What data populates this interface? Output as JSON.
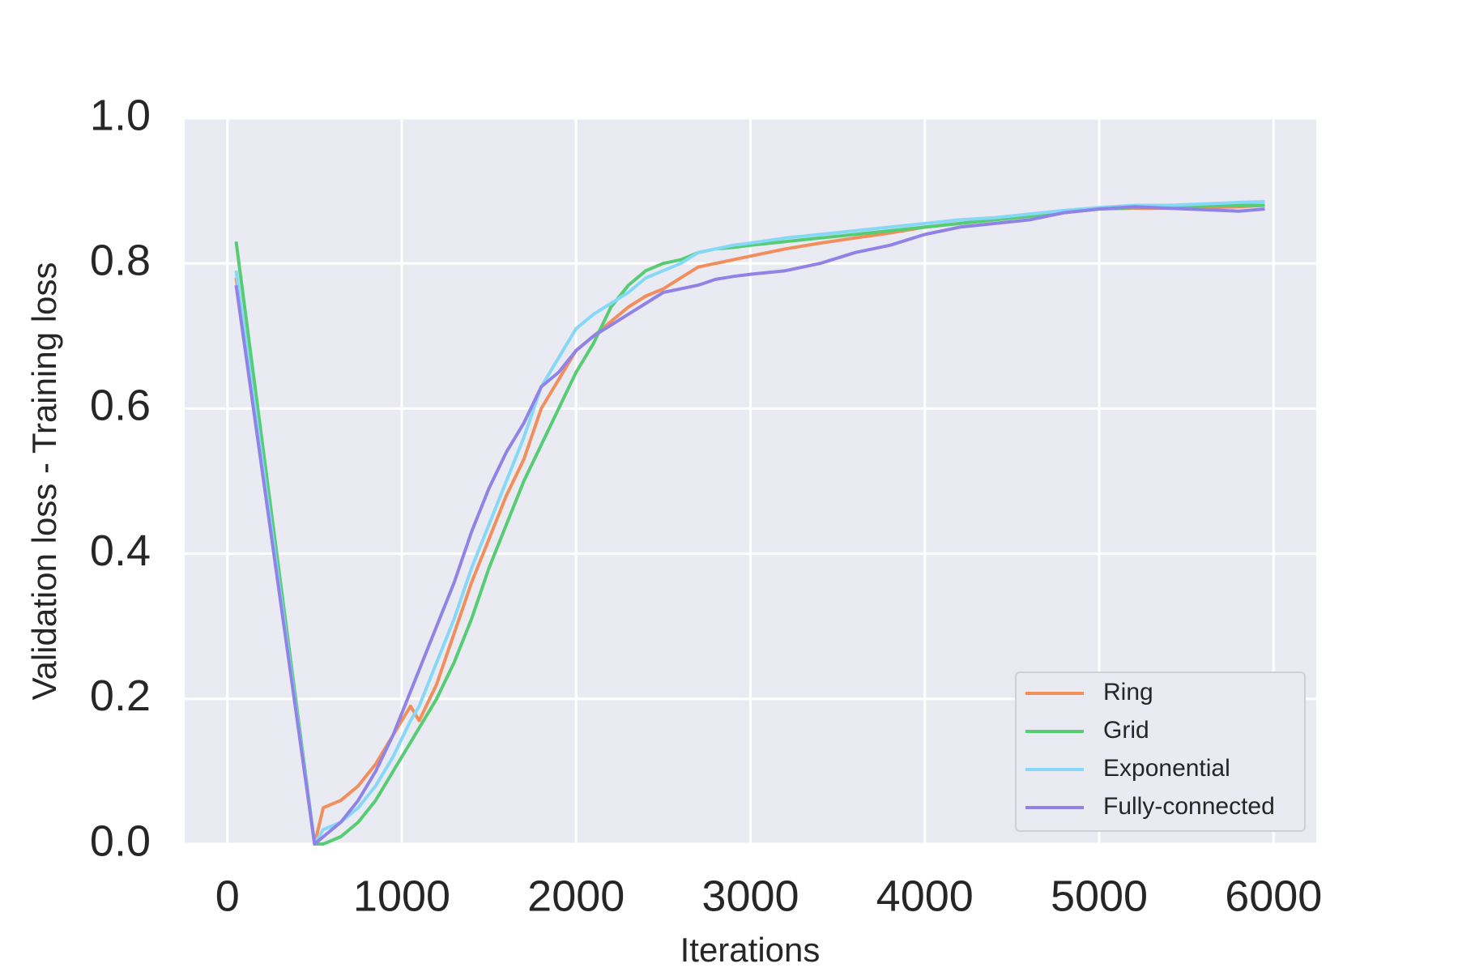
{
  "chart_data": {
    "type": "line",
    "xlabel": "Iterations",
    "ylabel": "Validation loss - Training loss",
    "x": [
      50,
      500,
      550,
      650,
      750,
      850,
      950,
      1050,
      1100,
      1200,
      1300,
      1400,
      1500,
      1600,
      1700,
      1800,
      1900,
      2000,
      2100,
      2200,
      2300,
      2400,
      2500,
      2600,
      2700,
      2800,
      2900,
      3000,
      3200,
      3400,
      3600,
      3800,
      4000,
      4200,
      4400,
      4600,
      4800,
      5000,
      5200,
      5400,
      5600,
      5800,
      5950
    ],
    "series": [
      {
        "name": "Ring",
        "color": "#f28e5b",
        "values": [
          0.78,
          0.0,
          0.05,
          0.06,
          0.08,
          0.11,
          0.15,
          0.19,
          0.17,
          0.22,
          0.29,
          0.36,
          0.42,
          0.48,
          0.53,
          0.6,
          0.64,
          0.68,
          0.7,
          0.72,
          0.74,
          0.755,
          0.765,
          0.78,
          0.795,
          0.8,
          0.805,
          0.81,
          0.82,
          0.828,
          0.835,
          0.842,
          0.85,
          0.855,
          0.86,
          0.865,
          0.87,
          0.875,
          0.876,
          0.876,
          0.877,
          0.878,
          0.88
        ]
      },
      {
        "name": "Grid",
        "color": "#56cc74",
        "values": [
          0.83,
          0.0,
          0.0,
          0.01,
          0.03,
          0.06,
          0.1,
          0.14,
          0.16,
          0.2,
          0.25,
          0.31,
          0.38,
          0.44,
          0.5,
          0.55,
          0.6,
          0.65,
          0.69,
          0.74,
          0.77,
          0.79,
          0.8,
          0.805,
          0.815,
          0.82,
          0.822,
          0.825,
          0.83,
          0.835,
          0.84,
          0.845,
          0.85,
          0.855,
          0.86,
          0.865,
          0.87,
          0.875,
          0.877,
          0.878,
          0.879,
          0.88,
          0.88
        ]
      },
      {
        "name": "Exponential",
        "color": "#86d8f7",
        "values": [
          0.79,
          0.0,
          0.02,
          0.03,
          0.05,
          0.08,
          0.12,
          0.17,
          0.19,
          0.25,
          0.31,
          0.38,
          0.44,
          0.5,
          0.56,
          0.63,
          0.67,
          0.71,
          0.73,
          0.745,
          0.76,
          0.78,
          0.79,
          0.8,
          0.815,
          0.82,
          0.825,
          0.828,
          0.835,
          0.84,
          0.845,
          0.85,
          0.855,
          0.86,
          0.863,
          0.868,
          0.873,
          0.877,
          0.88,
          0.88,
          0.882,
          0.884,
          0.885
        ]
      },
      {
        "name": "Fully-connected",
        "color": "#9083e8",
        "values": [
          0.77,
          0.0,
          0.01,
          0.03,
          0.06,
          0.1,
          0.15,
          0.21,
          0.24,
          0.3,
          0.36,
          0.43,
          0.49,
          0.54,
          0.58,
          0.63,
          0.65,
          0.68,
          0.7,
          0.715,
          0.73,
          0.745,
          0.76,
          0.765,
          0.77,
          0.778,
          0.782,
          0.785,
          0.79,
          0.8,
          0.815,
          0.825,
          0.84,
          0.85,
          0.855,
          0.86,
          0.87,
          0.875,
          0.878,
          0.876,
          0.874,
          0.872,
          0.875
        ]
      }
    ],
    "xlim": [
      -245,
      6245
    ],
    "ylim": [
      0,
      1
    ],
    "xticks": [
      0,
      1000,
      2000,
      3000,
      4000,
      5000,
      6000
    ],
    "yticks": [
      {
        "value": 0,
        "label": "0.0"
      },
      0.2,
      0.4,
      0.6,
      0.8,
      {
        "value": 1,
        "label": "1.0"
      }
    ],
    "grid": true,
    "legend": "lower right"
  }
}
